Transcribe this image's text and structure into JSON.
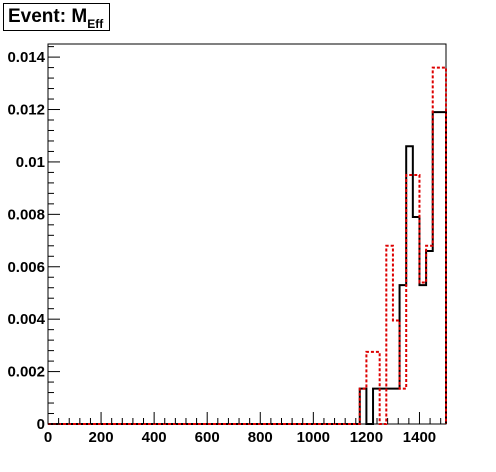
{
  "title": {
    "prefix": "Event: M",
    "subscript": "Eff"
  },
  "chart_data": {
    "type": "step",
    "xlim": [
      0,
      1500
    ],
    "ylim": [
      0,
      0.0145
    ],
    "x_ticks": [
      0,
      200,
      400,
      600,
      800,
      1000,
      1200,
      1400
    ],
    "x_tick_labels": [
      "0",
      "200",
      "400",
      "600",
      "800",
      "1000",
      "1200",
      "1400"
    ],
    "y_ticks": [
      0,
      0.002,
      0.004,
      0.006,
      0.008,
      0.01,
      0.012,
      0.014
    ],
    "y_tick_labels": [
      "0",
      "0.002",
      "0.004",
      "0.006",
      "0.008",
      "0.01",
      "0.012",
      "0.014"
    ],
    "bin_edges": [
      0,
      1175,
      1200,
      1225,
      1250,
      1275,
      1300,
      1325,
      1350,
      1375,
      1400,
      1425,
      1450,
      1475,
      1500
    ],
    "series": [
      {
        "style": "solid",
        "color": "#000000",
        "values": [
          0,
          0.00135,
          0,
          0.00135,
          0.00135,
          0.00135,
          0.00135,
          0.0053,
          0.0106,
          0.0079,
          0.0053,
          0.0066,
          0.0119,
          0.0119
        ]
      },
      {
        "style": "dotted",
        "color": "#dd0000",
        "values": [
          0,
          0.00135,
          0.00275,
          0.00275,
          0,
          0.0068,
          0.00395,
          0.00135,
          0.0095,
          0.0095,
          0.0054,
          0.0068,
          0.0136,
          0.0136
        ]
      }
    ],
    "grid": false,
    "legend": "none"
  }
}
